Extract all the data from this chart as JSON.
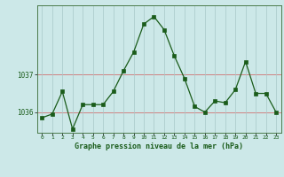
{
  "hours": [
    0,
    1,
    2,
    3,
    4,
    5,
    6,
    7,
    8,
    9,
    10,
    11,
    12,
    13,
    14,
    15,
    16,
    17,
    18,
    19,
    20,
    21,
    22,
    23
  ],
  "pressure": [
    1035.85,
    1035.95,
    1036.55,
    1035.55,
    1036.2,
    1036.2,
    1036.2,
    1036.55,
    1037.1,
    1037.6,
    1038.35,
    1038.55,
    1038.2,
    1037.5,
    1036.9,
    1036.15,
    1036.0,
    1036.3,
    1036.25,
    1036.6,
    1037.35,
    1036.5,
    1036.5,
    1036.0
  ],
  "ylim": [
    1035.45,
    1038.85
  ],
  "yticks": [
    1036,
    1037
  ],
  "xlabel": "Graphe pression niveau de la mer (hPa)",
  "line_color": "#1a5c1a",
  "marker_color": "#1a5c1a",
  "bg_color": "#cce8e8",
  "grid_x_color": "#a8c8c8",
  "grid_y_color": "#d08080",
  "axis_color": "#4a7a4a",
  "label_color": "#1a5c1a",
  "figsize": [
    3.2,
    2.0
  ],
  "dpi": 100
}
